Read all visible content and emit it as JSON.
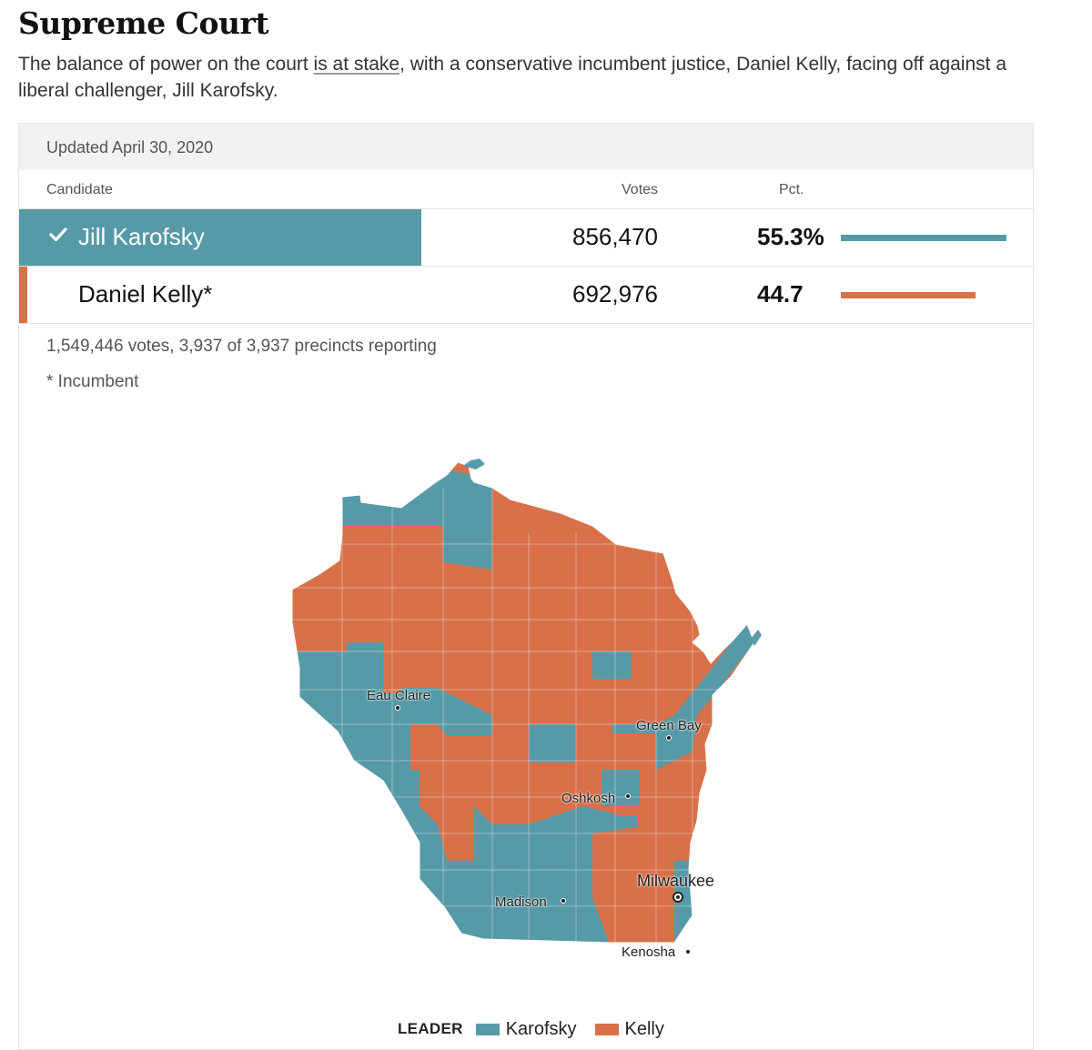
{
  "header": {
    "title": "Supreme Court",
    "subtitle_before": "The balance of power on the court ",
    "subtitle_link": "is at stake",
    "subtitle_after": ", with a conservative incumbent justice, Daniel Kelly, facing off against a liberal challenger, Jill Karofsky."
  },
  "results": {
    "updated": "Updated April 30, 2020",
    "columns": {
      "candidate": "Candidate",
      "votes": "Votes",
      "pct": "Pct."
    },
    "candidates": [
      {
        "name": "Jill Karofsky",
        "votes": "856,470",
        "pct": "55.3%",
        "pct_value": 55.3,
        "winner": true,
        "color": "#579aa7"
      },
      {
        "name": "Daniel Kelly*",
        "votes": "692,976",
        "pct": "44.7",
        "pct_value": 44.7,
        "winner": false,
        "color": "#d8704a"
      }
    ],
    "summary": "1,549,446 votes, 3,937 of 3,937 precincts reporting",
    "incumbent_note": "* Incumbent"
  },
  "map": {
    "cities": [
      {
        "name": "Eau Claire"
      },
      {
        "name": "Green Bay"
      },
      {
        "name": "Oshkosh"
      },
      {
        "name": "Madison"
      },
      {
        "name": "Milwaukee"
      },
      {
        "name": "Kenosha"
      }
    ],
    "legend": {
      "title": "LEADER",
      "karofsky": "Karofsky",
      "kelly": "Kelly"
    },
    "colors": {
      "karofsky": "#579aa7",
      "kelly": "#d8704a"
    }
  }
}
